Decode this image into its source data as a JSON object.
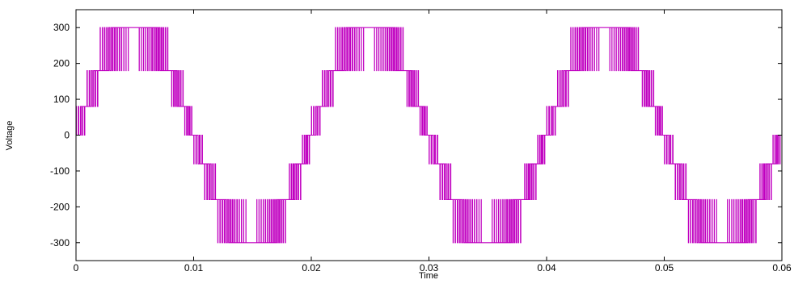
{
  "chart_data": {
    "type": "line",
    "title": "",
    "xlabel": "Time",
    "ylabel": "Voltage",
    "xlim": [
      0,
      0.06
    ],
    "ylim": [
      -350,
      350
    ],
    "x_ticks": [
      {
        "value": 0,
        "label": "0"
      },
      {
        "value": 0.01,
        "label": "0.01"
      },
      {
        "value": 0.02,
        "label": "0.02"
      },
      {
        "value": 0.03,
        "label": "0.03"
      },
      {
        "value": 0.04,
        "label": "0.04"
      },
      {
        "value": 0.05,
        "label": "0.05"
      },
      {
        "value": 0.06,
        "label": "0.06"
      }
    ],
    "y_ticks": [
      {
        "value": 300,
        "label": "300"
      },
      {
        "value": 200,
        "label": "200"
      },
      {
        "value": 100,
        "label": "100"
      },
      {
        "value": 0,
        "label": "0"
      },
      {
        "value": -100,
        "label": "-100"
      },
      {
        "value": -200,
        "label": "-200"
      },
      {
        "value": -300,
        "label": "-300"
      }
    ],
    "grid": false,
    "series": [
      {
        "color": "#c000c0",
        "waveform": "multilevel PWM inverter output",
        "fundamental_frequency_hz": 50,
        "levels": [
          -300,
          -180,
          -80,
          0,
          80,
          180,
          300
        ],
        "pulses_per_level_band": 9
      }
    ]
  }
}
